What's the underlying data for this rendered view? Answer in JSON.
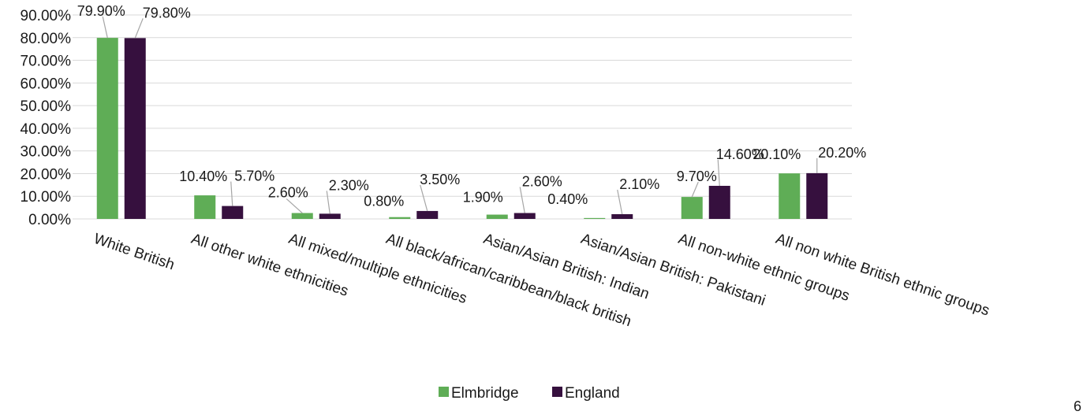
{
  "chart_data": {
    "type": "bar",
    "categories": [
      "White British",
      "All other white ethnicities",
      "All mixed/multiple ethnicities",
      "All black/african/caribbean/black british",
      "Asian/Asian British: Indian",
      "Asian/Asian British: Pakistani",
      "All non-white ethnic groups",
      "All non white British ethnic groups"
    ],
    "series": [
      {
        "name": "Elmbridge",
        "color": "#5fad56",
        "values": [
          79.9,
          10.4,
          2.6,
          0.8,
          1.9,
          0.4,
          9.7,
          20.1
        ],
        "labels": [
          "79.90%",
          "10.40%",
          "2.60%",
          "0.80%",
          "1.90%",
          "0.40%",
          "9.70%",
          "20.10%"
        ]
      },
      {
        "name": "England",
        "color": "#36103e",
        "values": [
          79.8,
          5.7,
          2.3,
          3.5,
          2.6,
          2.1,
          14.6,
          20.2
        ],
        "labels": [
          "79.80%",
          "5.70%",
          "2.30%",
          "3.50%",
          "2.60%",
          "2.10%",
          "14.60%",
          "20.20%"
        ]
      }
    ],
    "ylim": [
      0,
      90
    ],
    "yticks": [
      0,
      10,
      20,
      30,
      40,
      50,
      60,
      70,
      80,
      90
    ],
    "ytick_labels": [
      "0.00%",
      "10.00%",
      "20.00%",
      "30.00%",
      "40.00%",
      "50.00%",
      "60.00%",
      "70.00%",
      "80.00%",
      "90.00%"
    ],
    "grid": true,
    "legend": "bottom-center",
    "title": "",
    "xlabel": "",
    "ylabel": ""
  },
  "page_number": "6"
}
